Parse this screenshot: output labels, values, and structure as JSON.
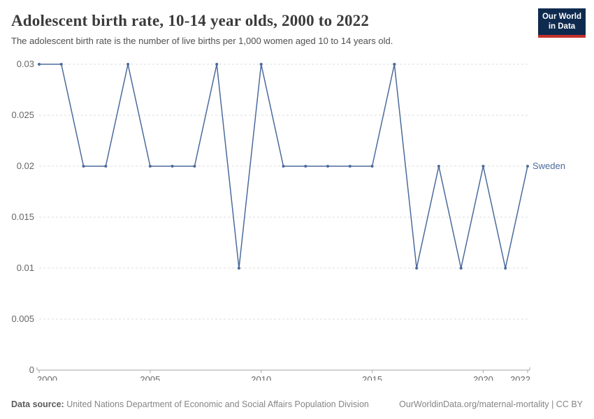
{
  "header": {
    "title": "Adolescent birth rate, 10-14 year olds, 2000 to 2022",
    "subtitle": "The adolescent birth rate is the number of live births per 1,000 women aged 10 to 14 years old.",
    "logo_line1": "Our World",
    "logo_line2": "in Data",
    "logo_bg_color": "#0e2a4e",
    "logo_stripe_color": "#c5312b"
  },
  "footer": {
    "data_source_label": "Data source:",
    "data_source_value": "United Nations Department of Economic and Social Affairs Population Division",
    "attribution": "OurWorldinData.org/maternal-mortality | CC BY"
  },
  "chart_data": {
    "type": "line",
    "title": "Adolescent birth rate, 10-14 year olds, 2000 to 2022",
    "xlabel": "",
    "ylabel": "",
    "xlim": [
      2000,
      2022
    ],
    "ylim": [
      0,
      0.03
    ],
    "grid": "horizontal-dashed",
    "legend_position": "end-of-line",
    "x_ticks": [
      2000,
      2005,
      2010,
      2015,
      2020,
      2022
    ],
    "y_ticks": [
      0,
      0.005,
      0.01,
      0.015,
      0.02,
      0.025,
      0.03
    ],
    "x": [
      2000,
      2001,
      2002,
      2003,
      2004,
      2005,
      2006,
      2007,
      2008,
      2009,
      2010,
      2011,
      2012,
      2013,
      2014,
      2015,
      2016,
      2017,
      2018,
      2019,
      2020,
      2021,
      2022
    ],
    "series": [
      {
        "name": "Sweden",
        "color": "#4c6a9c",
        "values": [
          0.03,
          0.03,
          0.02,
          0.02,
          0.03,
          0.02,
          0.02,
          0.02,
          0.03,
          0.01,
          0.03,
          0.02,
          0.02,
          0.02,
          0.02,
          0.02,
          0.03,
          0.01,
          0.02,
          0.01,
          0.02,
          0.01,
          0.02
        ]
      }
    ],
    "colors": {
      "gridline": "#dddddd",
      "axis_line": "#a5a5a5",
      "tick_label": "#666666"
    }
  }
}
